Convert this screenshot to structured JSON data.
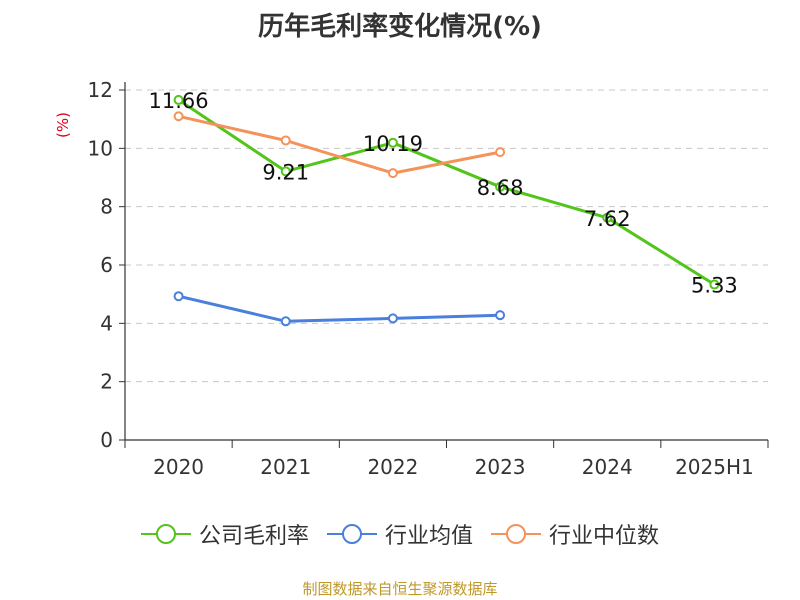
{
  "chart_data": {
    "type": "line",
    "title": "历年毛利率变化情况(%)",
    "ylabel": "(%)",
    "xlabel": "",
    "categories": [
      "2020",
      "2021",
      "2022",
      "2023",
      "2024",
      "2025H1"
    ],
    "ylim": [
      0,
      12
    ],
    "yticks": [
      0,
      2,
      4,
      6,
      8,
      10,
      12
    ],
    "grid": "horizontal-dashed",
    "legend_position": "bottom",
    "series": [
      {
        "name": "公司毛利率",
        "color": "#52c41a",
        "values": [
          11.66,
          9.21,
          10.19,
          8.68,
          7.62,
          5.33
        ],
        "labels": [
          "11.66",
          "9.21",
          "10.19",
          "8.68",
          "7.62",
          "5.33"
        ]
      },
      {
        "name": "行业均值",
        "color": "#4a7fdb",
        "values": [
          4.93,
          4.07,
          4.17,
          4.28,
          null,
          null
        ]
      },
      {
        "name": "行业中位数",
        "color": "#f4925a",
        "values": [
          11.1,
          10.27,
          9.15,
          9.87,
          null,
          null
        ]
      }
    ]
  },
  "source_note": "制图数据来自恒生聚源数据库"
}
